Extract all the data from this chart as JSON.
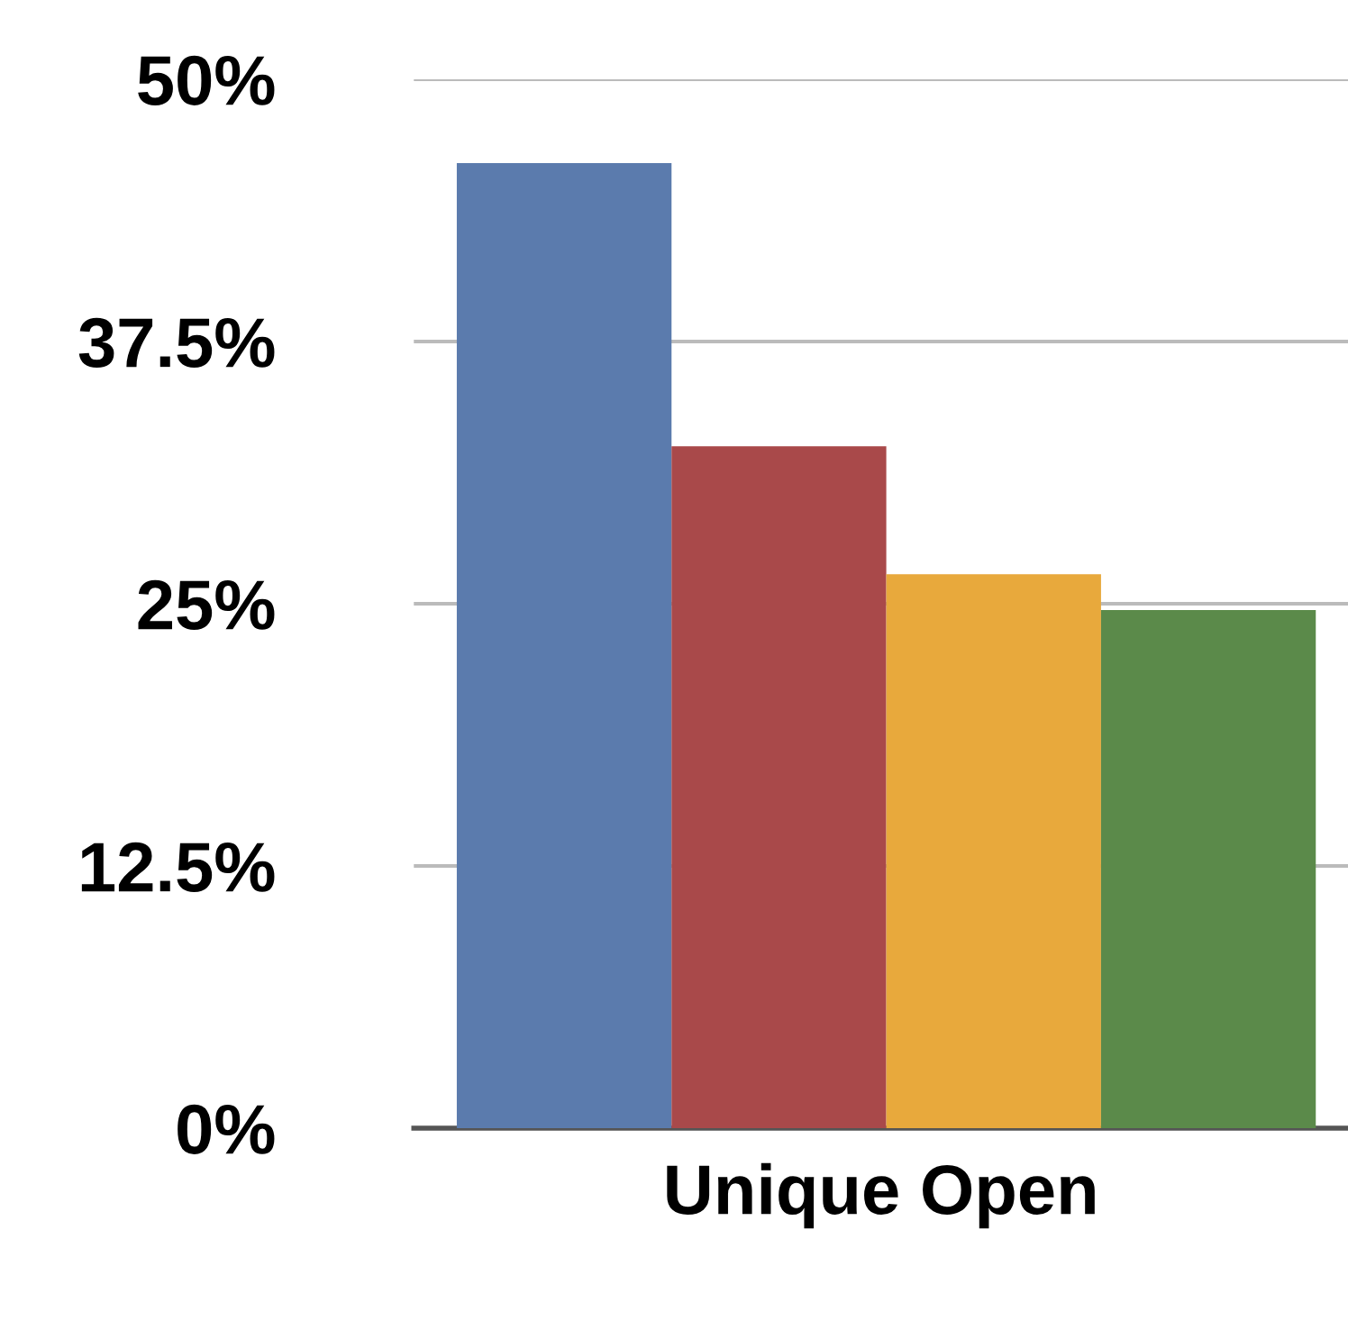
{
  "chart_data": {
    "type": "bar",
    "categories": [
      null,
      null,
      null,
      null
    ],
    "xlabel": "Unique Open",
    "values": [
      46,
      32.5,
      26.4,
      24.7
    ],
    "colors": [
      "#5b7bad",
      "#a9494a",
      "#e8a93c",
      "#5b8a4a"
    ],
    "ylim": [
      0,
      50
    ],
    "yticks": [
      {
        "value": 0,
        "label": "0%"
      },
      {
        "value": 12.5,
        "label": "12.5%"
      },
      {
        "value": 25,
        "label": "25%"
      },
      {
        "value": 37.5,
        "label": "37.5%"
      },
      {
        "value": 50,
        "label": "50%"
      }
    ],
    "grid": "y"
  }
}
